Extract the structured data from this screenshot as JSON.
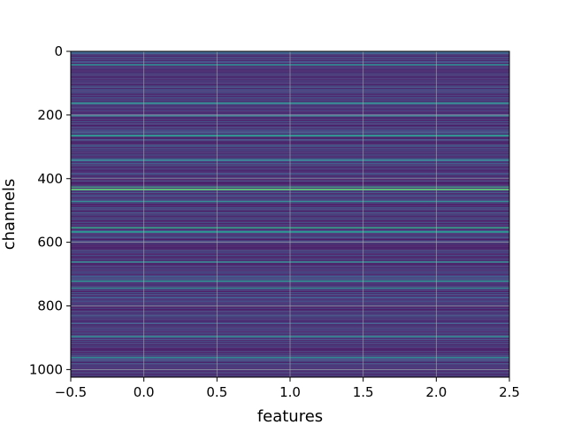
{
  "chart_data": {
    "type": "heatmap",
    "title": "",
    "xlabel": "features",
    "ylabel": "channels",
    "xlim": [
      -0.5,
      2.5
    ],
    "ylim": [
      1024,
      0
    ],
    "x_ticks": [
      -0.5,
      0.0,
      0.5,
      1.0,
      1.5,
      2.0,
      2.5
    ],
    "x_tick_labels": [
      "−0.5",
      "0.0",
      "0.5",
      "1.0",
      "1.5",
      "2.0",
      "2.5"
    ],
    "y_ticks": [
      0,
      200,
      400,
      600,
      800,
      1000
    ],
    "y_tick_labels": [
      "0",
      "200",
      "400",
      "600",
      "800",
      "1000"
    ],
    "n_features": 3,
    "n_channels": 1024,
    "colormap": "viridis",
    "colormap_stops": [
      "#440154",
      "#3b528b",
      "#21918c",
      "#5ec962",
      "#fde725"
    ],
    "grid": true,
    "legend": "none",
    "row_bands": [
      {
        "start": 0,
        "end": 8,
        "level": 0.3
      },
      {
        "start": 40,
        "end": 45,
        "level": 0.45
      },
      {
        "start": 160,
        "end": 166,
        "level": 0.45
      },
      {
        "start": 200,
        "end": 205,
        "level": 0.4
      },
      {
        "start": 262,
        "end": 268,
        "level": 0.5
      },
      {
        "start": 340,
        "end": 345,
        "level": 0.4
      },
      {
        "start": 425,
        "end": 428,
        "level": 0.62
      },
      {
        "start": 432,
        "end": 437,
        "level": 0.7
      },
      {
        "start": 470,
        "end": 474,
        "level": 0.45
      },
      {
        "start": 552,
        "end": 557,
        "level": 0.55
      },
      {
        "start": 565,
        "end": 570,
        "level": 0.5
      },
      {
        "start": 660,
        "end": 664,
        "level": 0.45
      },
      {
        "start": 720,
        "end": 724,
        "level": 0.5
      },
      {
        "start": 742,
        "end": 746,
        "level": 0.45
      },
      {
        "start": 895,
        "end": 899,
        "level": 0.45
      },
      {
        "start": 960,
        "end": 964,
        "level": 0.45
      }
    ]
  }
}
